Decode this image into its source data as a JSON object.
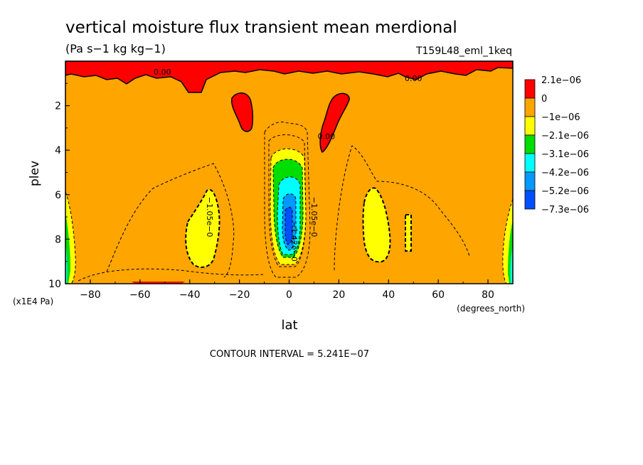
{
  "chart_data": {
    "type": "heatmap",
    "title": "vertical moisture flux transient mean merdional",
    "units": "(Pa s−1 kg kg−1)",
    "experiment": "T159L48_eml_1keq",
    "xlabel": "lat",
    "xunits": "(degrees_north)",
    "ylabel": "plev",
    "yunits": "(x1E4 Pa)",
    "xlim": [
      -90,
      90
    ],
    "ylim": [
      0,
      10
    ],
    "yinverted": true,
    "xticks": [
      -80,
      -60,
      -40,
      -20,
      0,
      20,
      40,
      60,
      80
    ],
    "xtick_labels": [
      "−80",
      "−60",
      "−40",
      "−20",
      "0",
      "20",
      "40",
      "60",
      "80"
    ],
    "yticks": [
      2,
      4,
      6,
      8,
      10
    ],
    "ytick_labels": [
      "2",
      "4",
      "6",
      "8",
      "10"
    ],
    "contour_interval": "CONTOUR INTERVAL = 5.241E−07",
    "contour_labels": [
      {
        "text": "0.00",
        "x": -51,
        "y": 0.6
      },
      {
        "text": "0.00",
        "x": 50,
        "y": 0.9
      },
      {
        "text": "0.00",
        "x": 15,
        "y": 3.5
      },
      {
        "text": "−1.05e−0",
        "x": -33,
        "y": 7.0
      },
      {
        "text": "−1.05e−0",
        "x": 9,
        "y": 7.0
      },
      {
        "text": "−1.42e−0",
        "x": 1,
        "y": 8.1
      }
    ],
    "legend": {
      "placement": "right",
      "colors": [
        "#ff0000",
        "#ffa500",
        "#ffff00",
        "#00dd00",
        "#00ffff",
        "#0099ff",
        "#0050ff"
      ],
      "labels": [
        "2.1e−06",
        "0",
        "−1e−06",
        "−2.1e−06",
        "−3.1e−06",
        "−4.2e−06",
        "−5.2e−06",
        "−7.3e−06"
      ]
    },
    "background_color": "#ffa500",
    "regions": [
      {
        "name": "upper-positive-band",
        "color": "#ff0000",
        "value_range": "0 to 2.1e−06",
        "lat": [
          -90,
          90
        ],
        "plev": [
          0,
          1.2
        ]
      },
      {
        "name": "positive-blob-south",
        "color": "#ff0000",
        "value_range": "0 to 2.1e−06",
        "lat": [
          -22,
          -16
        ],
        "plev": [
          1.5,
          3.0
        ]
      },
      {
        "name": "positive-blob-north",
        "color": "#ff0000",
        "value_range": "0 to 2.1e−06",
        "lat": [
          13,
          24
        ],
        "plev": [
          1.3,
          4.1
        ]
      },
      {
        "name": "equatorial-minimum",
        "color": "#0050ff",
        "value_range": "−7.3e−06 to −2.1e−06",
        "lat": [
          -7,
          8
        ],
        "plev": [
          3.0,
          9.2
        ]
      },
      {
        "name": "southern-negative-lobe",
        "color": "#ffff00",
        "value_range": "−2.1e−06 to −1e−06",
        "lat": [
          -42,
          -29
        ],
        "plev": [
          5.7,
          9.2
        ]
      },
      {
        "name": "northern-negative-lobe",
        "color": "#ffff00",
        "value_range": "−2.1e−06 to −1e−06",
        "lat": [
          29,
          41
        ],
        "plev": [
          5.6,
          9.0
        ]
      },
      {
        "name": "small-negative-north",
        "color": "#ffff00",
        "value_range": "−2.1e−06 to −1e−06",
        "lat": [
          47,
          51
        ],
        "plev": [
          6.9,
          8.6
        ]
      },
      {
        "name": "south-pole-negative",
        "color": "#00ffff",
        "value_range": "−5.2e−06 to −1e−06",
        "lat": [
          -90,
          -86
        ],
        "plev": [
          6.0,
          10.0
        ]
      },
      {
        "name": "north-pole-negative",
        "color": "#00ffff",
        "value_range": "−5.2e−06 to −1e−06",
        "lat": [
          85,
          90
        ],
        "plev": [
          6.0,
          10.0
        ]
      }
    ]
  }
}
